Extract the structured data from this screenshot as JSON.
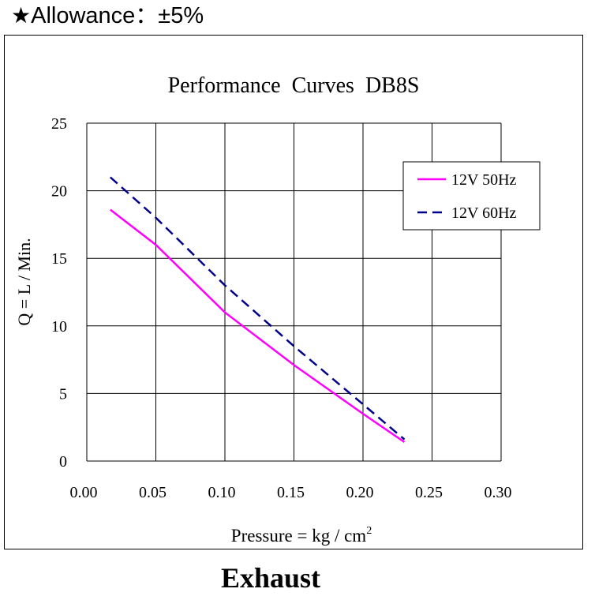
{
  "header": {
    "star": "★",
    "allowance_text": "Allowance：±5%"
  },
  "footer": {
    "label": "Exhaust"
  },
  "chart_data": {
    "type": "line",
    "title": "Performance  Curves  DB8S",
    "xlabel": "Pressure = kg / cm",
    "xlabel_sup": "2",
    "ylabel": "Q = L / Min.",
    "xlim": [
      0.0,
      0.3
    ],
    "ylim": [
      0,
      25
    ],
    "x_ticks": [
      "0.00",
      "0.05",
      "0.10",
      "0.15",
      "0.20",
      "0.25",
      "0.30"
    ],
    "y_ticks": [
      "0",
      "5",
      "10",
      "15",
      "20",
      "25"
    ],
    "grid": true,
    "legend_position": "top-right",
    "series": [
      {
        "name": "12V 50Hz",
        "color": "#ff00ff",
        "style": "solid",
        "x": [
          0.017,
          0.05,
          0.1,
          0.15,
          0.2,
          0.23
        ],
        "y": [
          18.6,
          16.0,
          11.0,
          7.1,
          3.5,
          1.4
        ]
      },
      {
        "name": "12V 60Hz",
        "color": "#00008b",
        "style": "dashed",
        "x": [
          0.017,
          0.05,
          0.1,
          0.15,
          0.2,
          0.23
        ],
        "y": [
          21.0,
          18.0,
          13.0,
          8.5,
          4.2,
          1.6
        ]
      }
    ]
  }
}
